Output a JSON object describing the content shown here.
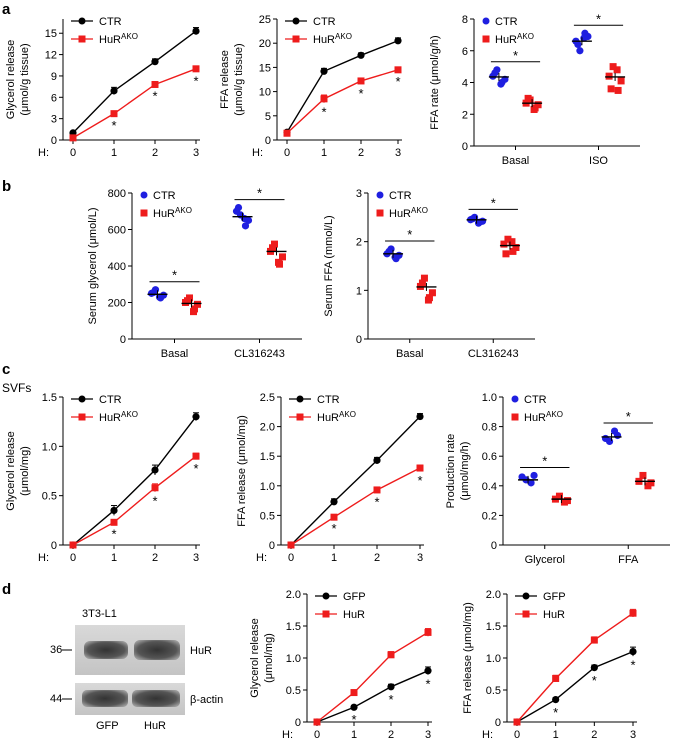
{
  "panels": {
    "a": "a",
    "b": "b",
    "c": "c",
    "d": "d"
  },
  "subtitle_c": "SVFs",
  "blot": {
    "cell_line": "3T3-L1",
    "markers": [
      "36",
      "44"
    ],
    "bands": [
      "HuR",
      "β-actin"
    ],
    "lanes": [
      "GFP",
      "HuR"
    ]
  },
  "colors": {
    "ctr": "#000000",
    "ako": "#ee1c1c",
    "blue": "#1f1fe0",
    "red": "#ee1c1c"
  },
  "chart_data": [
    {
      "id": "a1",
      "type": "line",
      "ylabel": [
        "Glycerol release",
        "(μmol/g tissue)"
      ],
      "xlabel": "H:",
      "x": [
        0,
        1,
        2,
        3
      ],
      "xticks": [
        "0",
        "1",
        "2",
        "3"
      ],
      "ylim": [
        0,
        17
      ],
      "yticks": [
        0,
        3,
        6,
        9,
        12,
        15
      ],
      "legend": [
        {
          "name": "CTR",
          "sup": ""
        },
        {
          "name": "HuR",
          "sup": "AKO"
        }
      ],
      "series": [
        {
          "name": "CTR",
          "color": "#000000",
          "values": [
            1.0,
            6.9,
            11.0,
            15.3
          ],
          "err": [
            0.2,
            0.5,
            0.4,
            0.5
          ]
        },
        {
          "name": "HuRAKO",
          "color": "#ee1c1c",
          "values": [
            0.3,
            3.7,
            7.8,
            10.0
          ],
          "err": [
            0.2,
            0.3,
            0.3,
            0.4
          ]
        }
      ],
      "stars": [
        "",
        "*",
        "*",
        "*"
      ]
    },
    {
      "id": "a2",
      "type": "line",
      "ylabel": [
        "FFA release",
        "(μmol/g tissue)"
      ],
      "xlabel": "H:",
      "x": [
        0,
        1,
        2,
        3
      ],
      "xticks": [
        "0",
        "1",
        "2",
        "3"
      ],
      "ylim": [
        0,
        25
      ],
      "yticks": [
        0,
        5,
        10,
        15,
        20,
        25
      ],
      "legend": [
        {
          "name": "CTR",
          "sup": ""
        },
        {
          "name": "HuR",
          "sup": "AKO"
        }
      ],
      "series": [
        {
          "name": "CTR",
          "color": "#000000",
          "values": [
            1.6,
            14.2,
            17.5,
            20.5
          ],
          "err": [
            0.3,
            0.6,
            0.5,
            0.6
          ]
        },
        {
          "name": "HuRAKO",
          "color": "#ee1c1c",
          "values": [
            1.4,
            8.5,
            12.2,
            14.5
          ],
          "err": [
            0.3,
            0.8,
            0.6,
            0.5
          ]
        }
      ],
      "stars": [
        "",
        "*",
        "*",
        "*"
      ]
    },
    {
      "id": "a3",
      "type": "scatter",
      "ylabel": [
        "FFA rate (μmol/g/h)"
      ],
      "categories": [
        "Basal",
        "ISO"
      ],
      "ylim": [
        0,
        8
      ],
      "yticks": [
        0,
        2,
        4,
        6,
        8
      ],
      "legend": [
        {
          "name": "CTR",
          "sup": ""
        },
        {
          "name": "HuR",
          "sup": "AKO"
        }
      ],
      "groups": [
        {
          "blue": [
            4.4,
            4.0,
            4.8,
            4.2,
            4.6,
            3.9
          ],
          "red": [
            2.7,
            2.4,
            2.9,
            2.6,
            3.0,
            2.3
          ],
          "bmean": 4.35,
          "rmean": 2.7
        },
        {
          "blue": [
            6.6,
            7.1,
            6.0,
            6.9,
            6.4,
            6.8
          ],
          "red": [
            4.4,
            3.5,
            5.0,
            4.1,
            3.6,
            4.8
          ],
          "bmean": 6.6,
          "rmean": 4.35
        }
      ],
      "sig": [
        "*",
        "*"
      ]
    },
    {
      "id": "b1",
      "type": "scatter",
      "ylabel": [
        "Serum glycerol (μmol/L)"
      ],
      "categories": [
        "Basal",
        "CL316243"
      ],
      "ylim": [
        0,
        800
      ],
      "yticks": [
        0,
        200,
        400,
        600,
        800
      ],
      "legend": [
        {
          "name": "CTR",
          "sup": ""
        },
        {
          "name": "HuR",
          "sup": "AKO"
        }
      ],
      "groups": [
        {
          "blue": [
            250,
            225,
            270,
            240,
            255,
            230
          ],
          "red": [
            200,
            165,
            225,
            190,
            210,
            150
          ],
          "bmean": 245,
          "rmean": 195
        },
        {
          "blue": [
            700,
            620,
            680,
            650,
            720,
            660
          ],
          "red": [
            480,
            410,
            520,
            450,
            500,
            420
          ],
          "bmean": 670,
          "rmean": 480
        }
      ],
      "sig": [
        "*",
        "*"
      ]
    },
    {
      "id": "b2",
      "type": "scatter",
      "ylabel": [
        "Serum FFA (mmol/L)"
      ],
      "categories": [
        "Basal",
        "CL316243"
      ],
      "ylim": [
        0,
        3
      ],
      "yticks": [
        0,
        1,
        2,
        3
      ],
      "legend": [
        {
          "name": "CTR",
          "sup": ""
        },
        {
          "name": "HuR",
          "sup": "AKO"
        }
      ],
      "groups": [
        {
          "blue": [
            1.75,
            1.65,
            1.85,
            1.72,
            1.8,
            1.68
          ],
          "red": [
            1.08,
            0.85,
            1.25,
            0.95,
            1.15,
            0.8
          ],
          "bmean": 1.75,
          "rmean": 1.07
        },
        {
          "blue": [
            2.45,
            2.4,
            2.5,
            2.42,
            2.47,
            2.38
          ],
          "red": [
            1.95,
            1.8,
            2.05,
            1.88,
            1.75,
            2.0
          ],
          "bmean": 2.45,
          "rmean": 1.92
        }
      ],
      "sig": [
        "*",
        "*"
      ]
    },
    {
      "id": "c1",
      "type": "line",
      "ylabel": [
        "Glycerol release",
        "(μmol/mg)"
      ],
      "xlabel": "H:",
      "x": [
        0,
        1,
        2,
        3
      ],
      "xticks": [
        "0",
        "1",
        "2",
        "3"
      ],
      "ylim": [
        0,
        1.5
      ],
      "yticks": [
        0,
        0.5,
        1.0,
        1.5
      ],
      "ytickLabels": [
        "0",
        "0.5",
        "1.0",
        "1.5"
      ],
      "legend": [
        {
          "name": "CTR",
          "sup": ""
        },
        {
          "name": "HuR",
          "sup": "AKO"
        }
      ],
      "series": [
        {
          "name": "CTR",
          "color": "#000000",
          "values": [
            0.0,
            0.35,
            0.76,
            1.3
          ],
          "err": [
            0.01,
            0.05,
            0.05,
            0.04
          ]
        },
        {
          "name": "HuRAKO",
          "color": "#ee1c1c",
          "values": [
            0.0,
            0.23,
            0.58,
            0.9
          ],
          "err": [
            0.01,
            0.02,
            0.04,
            0.03
          ]
        }
      ],
      "stars": [
        "",
        "*",
        "*",
        "*"
      ]
    },
    {
      "id": "c2",
      "type": "line",
      "ylabel": [
        "FFA release (μmol/mg)"
      ],
      "xlabel": "H:",
      "x": [
        0,
        1,
        2,
        3
      ],
      "xticks": [
        "0",
        "1",
        "2",
        "3"
      ],
      "ylim": [
        0,
        2.5
      ],
      "yticks": [
        0,
        0.5,
        1.0,
        1.5,
        2.0,
        2.5
      ],
      "ytickLabels": [
        "0",
        "0.5",
        "1.0",
        "1.5",
        "2.0",
        "2.5"
      ],
      "legend": [
        {
          "name": "CTR",
          "sup": ""
        },
        {
          "name": "HuR",
          "sup": "AKO"
        }
      ],
      "series": [
        {
          "name": "CTR",
          "color": "#000000",
          "values": [
            0.0,
            0.73,
            1.43,
            2.17
          ],
          "err": [
            0.01,
            0.05,
            0.05,
            0.05
          ]
        },
        {
          "name": "HuRAKO",
          "color": "#ee1c1c",
          "values": [
            0.0,
            0.47,
            0.93,
            1.3
          ],
          "err": [
            0.01,
            0.03,
            0.04,
            0.05
          ]
        }
      ],
      "stars": [
        "",
        "*",
        "*",
        "*"
      ]
    },
    {
      "id": "c3",
      "type": "scatter",
      "ylabel": [
        "Production rate",
        "(μmol/mg/h)"
      ],
      "categories": [
        "Glycerol",
        "FFA"
      ],
      "ylim": [
        0,
        1.0
      ],
      "yticks": [
        0,
        0.2,
        0.4,
        0.6,
        0.8,
        1.0
      ],
      "ytickLabels": [
        "0",
        "0.2",
        "0.4",
        "0.6",
        "0.8",
        "1.0"
      ],
      "legend": [
        {
          "name": "CTR",
          "sup": ""
        },
        {
          "name": "HuR",
          "sup": "AKO"
        }
      ],
      "groups": [
        {
          "blue": [
            0.46,
            0.42,
            0.44,
            0.47
          ],
          "red": [
            0.31,
            0.29,
            0.33,
            0.3
          ],
          "bmean": 0.44,
          "rmean": 0.31
        },
        {
          "blue": [
            0.72,
            0.77,
            0.7,
            0.74
          ],
          "red": [
            0.43,
            0.4,
            0.47,
            0.42
          ],
          "bmean": 0.73,
          "rmean": 0.43
        }
      ],
      "sig": [
        "*",
        "*"
      ]
    },
    {
      "id": "d1",
      "type": "line",
      "ylabel": [
        "Glycerol release",
        "(μmol/mg)"
      ],
      "xlabel": "H:",
      "x": [
        0,
        1,
        2,
        3
      ],
      "xticks": [
        "0",
        "1",
        "2",
        "3"
      ],
      "ylim": [
        0,
        2.0
      ],
      "yticks": [
        0,
        0.5,
        1.0,
        1.5,
        2.0
      ],
      "ytickLabels": [
        "0",
        "0.5",
        "1.0",
        "1.5",
        "2.0"
      ],
      "legend": [
        {
          "name": "GFP",
          "sup": ""
        },
        {
          "name": "HuR",
          "sup": ""
        }
      ],
      "series": [
        {
          "name": "GFP",
          "color": "#000000",
          "values": [
            0.0,
            0.23,
            0.55,
            0.8
          ],
          "err": [
            0.01,
            0.03,
            0.04,
            0.06
          ]
        },
        {
          "name": "HuR",
          "color": "#ee1c1c",
          "values": [
            0.0,
            0.46,
            1.05,
            1.4
          ],
          "err": [
            0.01,
            0.04,
            0.05,
            0.06
          ]
        }
      ],
      "stars": [
        "",
        "*",
        "*",
        "*"
      ]
    },
    {
      "id": "d2",
      "type": "line",
      "ylabel": [
        "FFA release (μmol/mg)"
      ],
      "xlabel": "H:",
      "x": [
        0,
        1,
        2,
        3
      ],
      "xticks": [
        "0",
        "1",
        "2",
        "3"
      ],
      "ylim": [
        0,
        2.0
      ],
      "yticks": [
        0,
        0.5,
        1.0,
        1.5,
        2.0
      ],
      "ytickLabels": [
        "0",
        "0.5",
        "1.0",
        "1.5",
        "2.0"
      ],
      "legend": [
        {
          "name": "GFP",
          "sup": ""
        },
        {
          "name": "HuR",
          "sup": ""
        }
      ],
      "series": [
        {
          "name": "GFP",
          "color": "#000000",
          "values": [
            0.0,
            0.35,
            0.85,
            1.1
          ],
          "err": [
            0.01,
            0.03,
            0.04,
            0.07
          ]
        },
        {
          "name": "HuR",
          "color": "#ee1c1c",
          "values": [
            0.0,
            0.68,
            1.28,
            1.7
          ],
          "err": [
            0.01,
            0.05,
            0.05,
            0.06
          ]
        }
      ],
      "stars": [
        "",
        "*",
        "*",
        "*"
      ]
    }
  ]
}
